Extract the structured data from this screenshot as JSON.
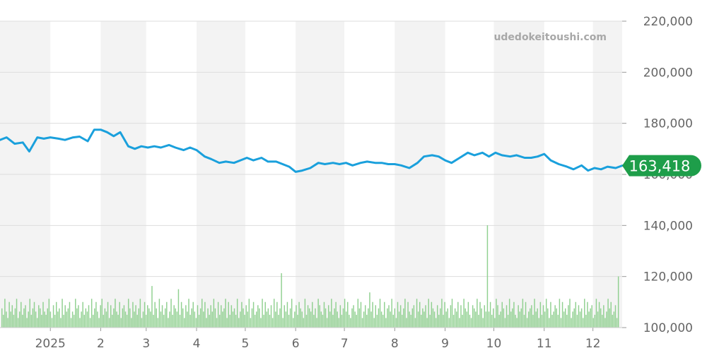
{
  "watermark": "udedokeitoushi.com",
  "current_label": "163,418",
  "colors": {
    "line": "#1aa0dc",
    "volume": "#90d090",
    "badge": "#1e9e4a",
    "band": "#f3f3f3",
    "grid": "#dddddd",
    "axis_text": "#666666"
  },
  "chart_data": {
    "type": "line",
    "title": "",
    "xlabel": "",
    "ylabel": "",
    "ylim": [
      100000,
      220000
    ],
    "yticks": [
      "220,000",
      "200,000",
      "180,000",
      "160,000",
      "140,000",
      "120,000",
      "100,000"
    ],
    "ytick_values": [
      220000,
      200000,
      180000,
      160000,
      140000,
      120000,
      100000
    ],
    "xticks": [
      {
        "label": "2025",
        "date": "2025-01"
      },
      {
        "label": "2",
        "date": "2025-02"
      },
      {
        "label": "3",
        "date": "2025-03"
      },
      {
        "label": "4",
        "date": "2025-04"
      },
      {
        "label": "5",
        "date": "2025-05"
      },
      {
        "label": "6",
        "date": "2025-06"
      },
      {
        "label": "7",
        "date": "2025-07"
      },
      {
        "label": "8",
        "date": "2025-08"
      },
      {
        "label": "9",
        "date": "2025-09"
      },
      {
        "label": "10",
        "date": "2025-10"
      },
      {
        "label": "11",
        "date": "2025-11"
      },
      {
        "label": "12",
        "date": "2025-12"
      }
    ],
    "x_range": [
      "2024-12-01",
      "2025-12-19"
    ],
    "grid": true,
    "last_value": 163418,
    "series": [
      {
        "type": "line",
        "x": [
          "2024-12-01",
          "2024-12-05",
          "2024-12-10",
          "2024-12-15",
          "2024-12-19",
          "2024-12-24",
          "2024-12-28",
          "2025-01-01",
          "2025-01-06",
          "2025-01-10",
          "2025-01-15",
          "2025-01-19",
          "2025-01-24",
          "2025-01-28",
          "2025-02-01",
          "2025-02-05",
          "2025-02-09",
          "2025-02-13",
          "2025-02-18",
          "2025-02-22",
          "2025-02-26",
          "2025-03-02",
          "2025-03-06",
          "2025-03-10",
          "2025-03-15",
          "2025-03-19",
          "2025-03-24",
          "2025-03-28",
          "2025-04-01",
          "2025-04-06",
          "2025-04-10",
          "2025-04-15",
          "2025-04-19",
          "2025-04-24",
          "2025-04-28",
          "2025-05-02",
          "2025-05-06",
          "2025-05-11",
          "2025-05-15",
          "2025-05-20",
          "2025-05-24",
          "2025-05-28",
          "2025-06-01",
          "2025-06-05",
          "2025-06-10",
          "2025-06-15",
          "2025-06-19",
          "2025-06-24",
          "2025-06-28",
          "2025-07-02",
          "2025-07-06",
          "2025-07-11",
          "2025-07-15",
          "2025-07-20",
          "2025-07-24",
          "2025-07-28",
          "2025-08-01",
          "2025-08-05",
          "2025-08-10",
          "2025-08-15",
          "2025-08-19",
          "2025-08-24",
          "2025-08-28",
          "2025-09-01",
          "2025-09-05",
          "2025-09-10",
          "2025-09-15",
          "2025-09-19",
          "2025-09-24",
          "2025-09-28",
          "2025-10-02",
          "2025-10-06",
          "2025-10-11",
          "2025-10-15",
          "2025-10-20",
          "2025-10-24",
          "2025-10-28",
          "2025-11-01",
          "2025-11-05",
          "2025-11-10",
          "2025-11-15",
          "2025-11-19",
          "2025-11-24",
          "2025-11-28",
          "2025-12-02",
          "2025-12-06",
          "2025-12-10",
          "2025-12-15",
          "2025-12-19"
        ],
        "values": [
          173500,
          174500,
          172000,
          172500,
          169000,
          174500,
          174000,
          174500,
          174000,
          173500,
          174500,
          174800,
          173000,
          177500,
          177500,
          176500,
          175000,
          176500,
          171000,
          170000,
          171000,
          170500,
          171000,
          170500,
          171500,
          170500,
          169500,
          170500,
          169500,
          167000,
          166000,
          164500,
          165000,
          164500,
          165500,
          166500,
          165500,
          166500,
          165000,
          165000,
          164000,
          163000,
          161000,
          161500,
          162500,
          164500,
          164000,
          164500,
          164000,
          164500,
          163500,
          164500,
          165000,
          164500,
          164500,
          164000,
          164000,
          163500,
          162500,
          164500,
          167000,
          167500,
          167000,
          165500,
          164500,
          166500,
          168500,
          167500,
          168500,
          167000,
          168500,
          167500,
          167000,
          167500,
          166500,
          166500,
          167000,
          168000,
          165500,
          164000,
          163000,
          162000,
          163500,
          161500,
          162500,
          162000,
          163000,
          162500,
          163418
        ]
      },
      {
        "type": "bar",
        "name": "",
        "values": [
          6,
          4,
          9,
          5,
          3,
          8,
          5,
          7,
          4,
          6,
          9,
          3,
          5,
          8,
          4,
          6,
          7,
          3,
          5,
          9,
          4,
          6,
          8,
          5,
          3,
          7,
          6,
          4,
          8,
          5,
          4,
          6,
          9,
          5,
          3,
          7,
          4,
          8,
          5,
          6,
          3,
          9,
          4,
          7,
          5,
          6,
          8,
          3,
          5,
          4,
          9,
          6,
          7,
          3,
          5,
          8,
          4,
          6,
          5,
          7,
          3,
          9,
          4,
          6,
          8,
          5,
          3,
          7,
          9,
          4,
          6,
          5,
          8,
          3,
          7,
          4,
          6,
          9,
          5,
          4,
          8,
          3,
          6,
          7,
          5,
          4,
          9,
          6,
          3,
          8,
          5,
          7,
          4,
          6,
          9,
          3,
          5,
          8,
          4,
          7,
          6,
          5,
          13,
          4,
          8,
          6,
          3,
          9,
          5,
          7,
          4,
          6,
          8,
          3,
          5,
          9,
          4,
          7,
          6,
          5,
          12,
          4,
          8,
          6,
          3,
          7,
          5,
          9,
          4,
          6,
          8,
          5,
          3,
          7,
          4,
          6,
          9,
          5,
          8,
          3,
          6,
          4,
          7,
          5,
          9,
          6,
          3,
          8,
          4,
          7,
          5,
          6,
          9,
          3,
          8,
          4,
          7,
          5,
          6,
          4,
          9,
          3,
          5,
          8,
          6,
          4,
          7,
          5,
          9,
          3,
          6,
          8,
          4,
          5,
          7,
          6,
          3,
          9,
          4,
          8,
          5,
          6,
          4,
          7,
          3,
          9,
          5,
          8,
          4,
          6,
          17,
          3,
          7,
          5,
          8,
          4,
          6,
          9,
          3,
          5,
          7,
          4,
          8,
          6,
          5,
          3,
          9,
          4,
          7,
          6,
          5,
          8,
          4,
          6,
          3,
          9,
          7,
          5,
          4,
          8,
          6,
          3,
          7,
          5,
          9,
          4,
          6,
          8,
          5,
          3,
          7,
          4,
          6,
          9,
          5,
          8,
          4,
          3,
          6,
          7,
          5,
          4,
          9,
          6,
          8,
          3,
          5,
          7,
          4,
          6,
          11,
          5,
          8,
          3,
          7,
          4,
          6,
          9,
          5,
          4,
          8,
          3,
          6,
          7,
          5,
          9,
          4,
          6,
          3,
          8,
          5,
          7,
          4,
          6,
          9,
          3,
          8,
          5,
          4,
          6,
          7,
          3,
          9,
          5,
          8,
          4,
          6,
          5,
          7,
          3,
          9,
          4,
          8,
          6,
          5,
          3,
          7,
          4,
          6,
          9,
          4,
          8,
          5,
          6,
          3,
          7,
          9,
          4,
          6,
          5,
          8,
          3,
          7,
          4,
          9,
          6,
          5,
          8,
          4,
          3,
          7,
          6,
          5,
          9,
          4,
          8,
          6,
          3,
          7,
          5,
          32,
          5,
          8,
          4,
          6,
          3,
          9,
          7,
          4,
          5,
          8,
          6,
          3,
          7,
          4,
          9,
          5,
          6,
          8,
          4,
          3,
          7,
          5,
          6,
          9,
          4,
          8,
          3,
          5,
          6,
          7,
          4,
          9,
          5,
          6,
          3,
          8,
          4,
          7,
          5,
          9,
          6,
          3,
          8,
          4,
          5,
          7,
          6,
          4,
          9,
          3,
          8,
          5,
          6,
          4,
          7,
          9,
          3,
          5,
          6,
          8,
          4,
          7,
          5,
          6,
          3,
          9,
          4,
          8,
          5,
          6,
          7,
          3,
          4,
          9,
          5,
          8,
          6,
          4,
          7,
          3,
          5,
          9,
          6,
          8,
          4,
          5,
          7,
          3,
          16
        ]
      }
    ]
  }
}
